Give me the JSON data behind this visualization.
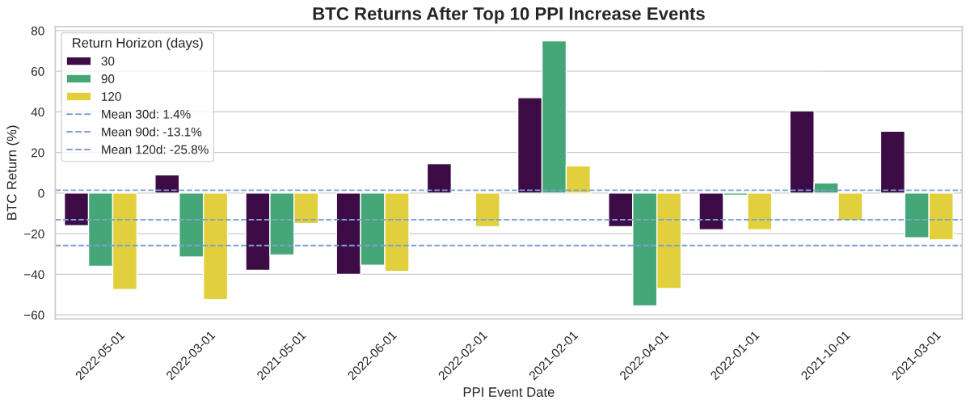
{
  "chart_data": {
    "type": "bar",
    "title": "BTC Returns After Top 10 PPI Increase Events",
    "xlabel": "PPI Event Date",
    "ylabel": "BTC Return (%)",
    "legend_title": "Return Horizon (days)",
    "categories": [
      "2022-05-01",
      "2022-03-01",
      "2021-05-01",
      "2022-06-01",
      "2022-02-01",
      "2021-02-01",
      "2022-04-01",
      "2022-01-01",
      "2021-10-01",
      "2021-03-01"
    ],
    "series": [
      {
        "name": "30",
        "color": "#3d0c47",
        "values": [
          -16,
          9,
          -38,
          -40,
          14.5,
          47,
          -16.5,
          -18,
          40.5,
          30.5
        ]
      },
      {
        "name": "90",
        "color": "#45a778",
        "values": [
          -36,
          -31.5,
          -30.5,
          -35.5,
          0.3,
          75,
          -55.5,
          -1,
          5,
          -22
        ]
      },
      {
        "name": "120",
        "color": "#e1d03c",
        "values": [
          -47.5,
          -52.5,
          -15,
          -38.5,
          -16.5,
          13.5,
          -47,
          -18,
          -13.5,
          -23
        ]
      }
    ],
    "ref_lines": [
      {
        "axis": "y",
        "value": 1.4,
        "label": "Mean 30d: 1.4%",
        "color": "#7f9fd2",
        "line_style": "dashed"
      },
      {
        "axis": "y",
        "value": -13.1,
        "label": "Mean 90d: -13.1%",
        "color": "#7f9fd2",
        "line_style": "dashed"
      },
      {
        "axis": "y",
        "value": -25.8,
        "label": "Mean 120d: -25.8%",
        "color": "#7f9fd2",
        "line_style": "dashed"
      }
    ],
    "ylim": [
      -62,
      82
    ],
    "yticks": [
      {
        "value": -60,
        "label": "−60"
      },
      {
        "value": -40,
        "label": "−40"
      },
      {
        "value": -20,
        "label": "−20"
      },
      0,
      20,
      40,
      60,
      80
    ],
    "grid": "y",
    "legend": "top left"
  }
}
